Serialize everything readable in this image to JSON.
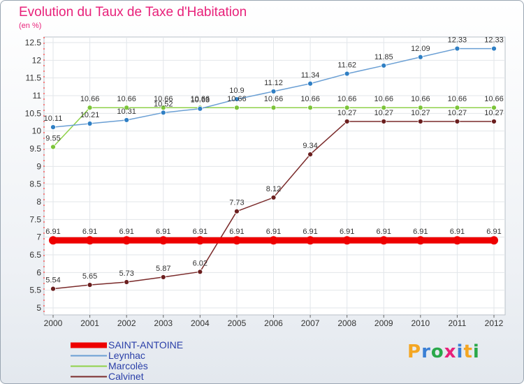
{
  "title": "Evolution du Taux de Taxe d'Habitation",
  "subtitle": "(en %)",
  "logo": {
    "text": "Proxiti",
    "letter_colors": [
      "#f4a623",
      "#3a7fd5",
      "#2aa84a",
      "#e8217a",
      "#3a7fd5",
      "#f4a623",
      "#2aa84a"
    ]
  },
  "chart_data": {
    "type": "line",
    "categories": [
      "2000",
      "2001",
      "2002",
      "2003",
      "2004",
      "2005",
      "2006",
      "2007",
      "2008",
      "2009",
      "2010",
      "2011",
      "2012"
    ],
    "ylim": [
      5,
      12.5
    ],
    "yticks": [
      {
        "value": 5,
        "label": "5"
      },
      {
        "value": 5.5,
        "label": "5.5"
      },
      {
        "value": 6,
        "label": "6"
      },
      {
        "value": 6.5,
        "label": "6.5"
      },
      {
        "value": 7,
        "label": "7"
      },
      {
        "value": 7.5,
        "label": "7.5"
      },
      {
        "value": 8,
        "label": "8"
      },
      {
        "value": 8.5,
        "label": "8.5"
      },
      {
        "value": 9,
        "label": "9"
      },
      {
        "value": 9.5,
        "label": "9.5"
      },
      {
        "value": 10,
        "label": "10"
      },
      {
        "value": 10.5,
        "label": "10.5"
      },
      {
        "value": 11,
        "label": "11"
      },
      {
        "value": 11.5,
        "label": "11.5"
      },
      {
        "value": 12,
        "label": "12"
      },
      {
        "value": 12.5,
        "label": "12.5"
      }
    ],
    "grid": true,
    "legend_position": "bottom-left",
    "series": [
      {
        "name": "SAINT-ANTOINE",
        "color": "#ee0000",
        "line_width": "thick",
        "values": [
          6.91,
          6.91,
          6.91,
          6.91,
          6.91,
          6.91,
          6.91,
          6.91,
          6.91,
          6.91,
          6.91,
          6.91,
          6.91
        ],
        "labels": [
          "6.91",
          "6.91",
          "6.91",
          "6.91",
          "6.91",
          "6.91",
          "6.91",
          "6.91",
          "6.91",
          "6.91",
          "6.91",
          "6.91",
          "6.91"
        ]
      },
      {
        "name": "Leynhac",
        "color": "#6a9fd4",
        "marker_color": "#2f7fc4",
        "line_width": "thin",
        "values": [
          10.11,
          10.21,
          10.31,
          10.52,
          10.63,
          10.9,
          11.12,
          11.34,
          11.62,
          11.85,
          12.09,
          12.33,
          12.33
        ],
        "labels": [
          "10.11",
          "10.21",
          "10.31",
          "10.52",
          "10.63",
          "10.9",
          "11.12",
          "11.34",
          "11.62",
          "11.85",
          "12.09",
          "12.33",
          "12.33"
        ]
      },
      {
        "name": "Marcolès",
        "color": "#8fd24a",
        "marker_color": "#7cc43a",
        "line_width": "thin",
        "values": [
          9.55,
          10.66,
          10.66,
          10.66,
          10.66,
          10.66,
          10.66,
          10.66,
          10.66,
          10.66,
          10.66,
          10.66,
          10.66
        ],
        "labels": [
          "9.55",
          "10.66",
          "10.66",
          "10.66",
          "10.66",
          "10.66",
          "10.66",
          "10.66",
          "10.66",
          "10.66",
          "10.66",
          "10.66",
          "10.66"
        ]
      },
      {
        "name": "Calvinet",
        "color": "#7a2a2a",
        "marker_color": "#6b1f1f",
        "line_width": "thin",
        "values": [
          5.54,
          5.65,
          5.73,
          5.87,
          6.02,
          7.73,
          8.12,
          9.34,
          10.27,
          10.27,
          10.27,
          10.27,
          10.27
        ],
        "labels": [
          "5.54",
          "5.65",
          "5.73",
          "5.87",
          "6.02",
          "7.73",
          "8.12",
          "9.34",
          "10.27",
          "10.27",
          "10.27",
          "10.27",
          "10.27"
        ]
      }
    ]
  }
}
